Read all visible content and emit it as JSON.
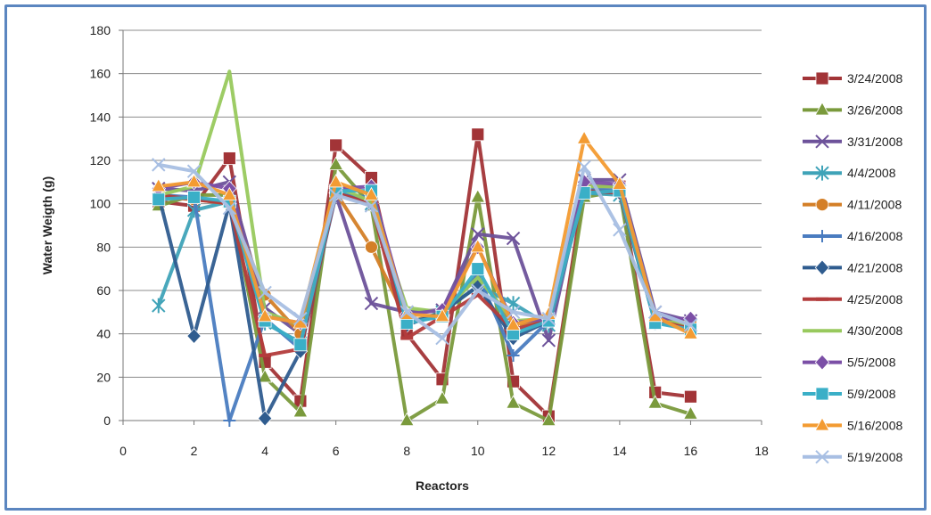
{
  "chart_data": {
    "type": "line",
    "xlabel": "Reactors",
    "ylabel": "Water Weigth (g)",
    "xlim": [
      0,
      18
    ],
    "ylim": [
      0,
      180
    ],
    "xticks": [
      0,
      2,
      4,
      6,
      8,
      10,
      12,
      14,
      16,
      18
    ],
    "yticks": [
      0,
      20,
      40,
      60,
      80,
      100,
      120,
      140,
      160,
      180
    ],
    "grid": "horizontal",
    "legend_position": "right",
    "x": [
      1,
      2,
      3,
      4,
      5,
      6,
      7,
      8,
      9,
      10,
      11,
      12,
      13,
      14,
      15,
      16
    ],
    "series": [
      {
        "name": "3/24/2008",
        "color": "#a23437",
        "marker": "square",
        "values": [
          101,
          99,
          121,
          27,
          9,
          127,
          112,
          40,
          19,
          132,
          18,
          2,
          108,
          108,
          13,
          11
        ]
      },
      {
        "name": "3/26/2008",
        "color": "#7a9a3c",
        "marker": "triangle",
        "values": [
          99,
          104,
          104,
          20,
          4,
          118,
          99,
          0,
          10,
          103,
          8,
          0,
          103,
          106,
          8,
          3
        ]
      },
      {
        "name": "3/31/2008",
        "color": "#6d529a",
        "marker": "x",
        "values": [
          107,
          106,
          110,
          52,
          40,
          104,
          54,
          50,
          51,
          86,
          84,
          37,
          111,
          111,
          50,
          46
        ]
      },
      {
        "name": "4/4/2008",
        "color": "#3fa3b8",
        "marker": "asterisk",
        "values": [
          53,
          97,
          101,
          45,
          36,
          106,
          100,
          45,
          50,
          62,
          54,
          44,
          105,
          104,
          45,
          44
        ]
      },
      {
        "name": "4/11/2008",
        "color": "#d47f27",
        "marker": "circle",
        "values": [
          103,
          102,
          100,
          58,
          40,
          105,
          80,
          46,
          48,
          68,
          44,
          46,
          106,
          106,
          47,
          45
        ]
      },
      {
        "name": "4/16/2008",
        "color": "#4a7cc0",
        "marker": "plus",
        "values": [
          104,
          103,
          0,
          47,
          33,
          104,
          103,
          45,
          49,
          67,
          30,
          46,
          107,
          106,
          46,
          43
        ]
      },
      {
        "name": "4/21/2008",
        "color": "#2f5c8f",
        "marker": "diamond",
        "values": [
          104,
          39,
          100,
          1,
          32,
          105,
          100,
          44,
          50,
          62,
          38,
          46,
          106,
          105,
          45,
          43
        ]
      },
      {
        "name": "4/25/2008",
        "color": "#b33c3c",
        "marker": "bar",
        "values": [
          104,
          102,
          100,
          30,
          33,
          105,
          100,
          38,
          48,
          58,
          42,
          46,
          106,
          105,
          46,
          43
        ]
      },
      {
        "name": "4/30/2008",
        "color": "#98c95d",
        "marker": "none",
        "values": [
          104,
          108,
          161,
          50,
          44,
          108,
          101,
          52,
          50,
          66,
          46,
          47,
          108,
          108,
          48,
          44
        ]
      },
      {
        "name": "5/5/2008",
        "color": "#7b4fa6",
        "marker": "diamond",
        "values": [
          107,
          110,
          107,
          48,
          45,
          107,
          108,
          49,
          51,
          80,
          45,
          47,
          110,
          109,
          47,
          47
        ]
      },
      {
        "name": "5/9/2008",
        "color": "#3aafc7",
        "marker": "square",
        "values": [
          102,
          103,
          101,
          46,
          35,
          106,
          106,
          45,
          48,
          70,
          40,
          46,
          105,
          106,
          45,
          42
        ]
      },
      {
        "name": "5/16/2008",
        "color": "#f39b32",
        "marker": "triangle",
        "values": [
          108,
          110,
          104,
          48,
          45,
          110,
          104,
          49,
          48,
          80,
          44,
          49,
          130,
          109,
          48,
          40
        ]
      },
      {
        "name": "5/19/2008",
        "color": "#a8bfe3",
        "marker": "x",
        "values": [
          118,
          115,
          98,
          59,
          47,
          104,
          99,
          50,
          38,
          60,
          50,
          47,
          117,
          88,
          50,
          44
        ]
      }
    ]
  }
}
